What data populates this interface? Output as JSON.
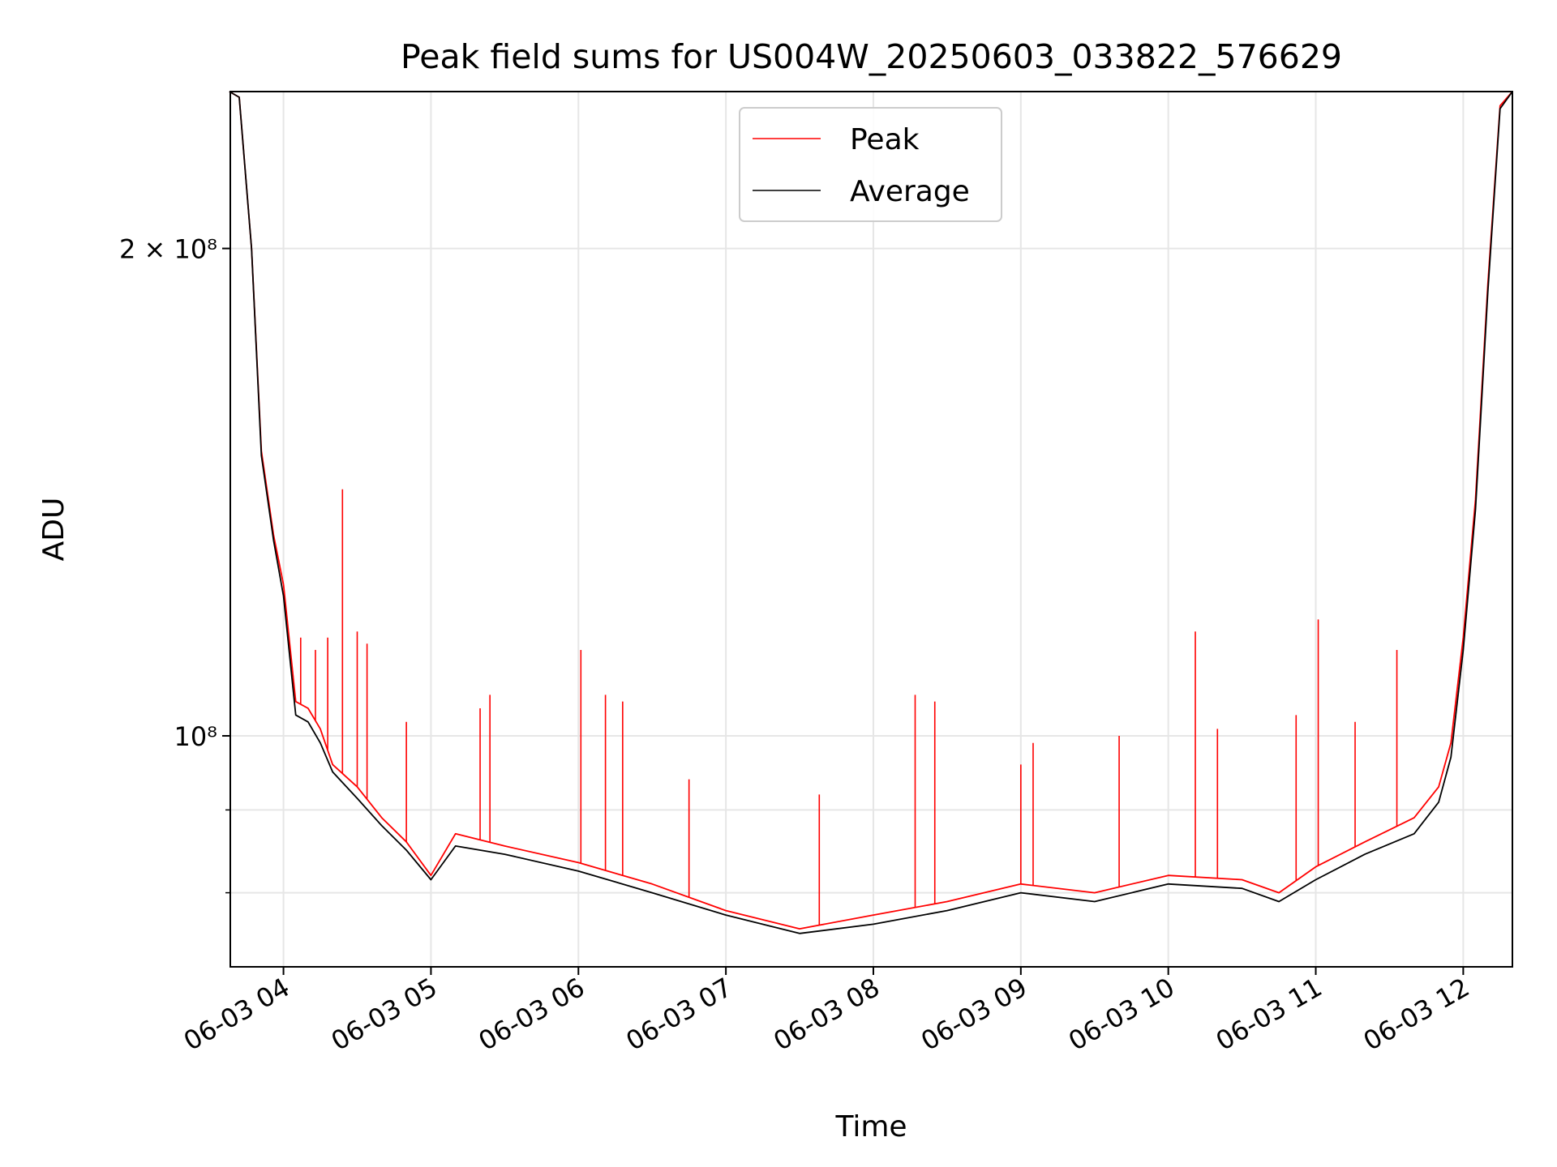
{
  "chart_data": {
    "type": "line",
    "title": "Peak field sums for US004W_20250603_033822_576629",
    "xlabel": "Time",
    "ylabel": "ADU",
    "y_scale": "log",
    "ylim": [
      72000000,
      250000000
    ],
    "xlim": [
      "2025-06-03 03:38:22",
      "2025-06-03 12:20:00"
    ],
    "grid": true,
    "legend_position": "top-center",
    "x_ticks": [
      "2025-06-03 04:00",
      "2025-06-03 05:00",
      "2025-06-03 06:00",
      "2025-06-03 07:00",
      "2025-06-03 08:00",
      "2025-06-03 09:00",
      "2025-06-03 10:00",
      "2025-06-03 11:00",
      "2025-06-03 12:00"
    ],
    "x_tick_labels": [
      "06-03 04",
      "06-03 05",
      "06-03 06",
      "06-03 07",
      "06-03 08",
      "06-03 09",
      "06-03 10",
      "06-03 11",
      "06-03 12"
    ],
    "y_tick_labels": [
      {
        "value": 200000000,
        "label": "2 × 10⁸"
      },
      {
        "value": 100000000,
        "label": "10⁸"
      }
    ],
    "y_minor_ticks": [
      80000000,
      90000000
    ],
    "series": [
      {
        "name": "Peak",
        "color": "#ff0000",
        "x": [
          "2025-06-03 03:38",
          "2025-06-03 03:42",
          "2025-06-03 03:47",
          "2025-06-03 03:51",
          "2025-06-03 03:56",
          "2025-06-03 04:00",
          "2025-06-03 04:05",
          "2025-06-03 04:10",
          "2025-06-03 04:15",
          "2025-06-03 04:20",
          "2025-06-03 04:30",
          "2025-06-03 04:40",
          "2025-06-03 04:50",
          "2025-06-03 05:00",
          "2025-06-03 05:10",
          "2025-06-03 05:30",
          "2025-06-03 06:00",
          "2025-06-03 06:30",
          "2025-06-03 07:00",
          "2025-06-03 07:30",
          "2025-06-03 08:00",
          "2025-06-03 08:30",
          "2025-06-03 09:00",
          "2025-06-03 09:30",
          "2025-06-03 10:00",
          "2025-06-03 10:30",
          "2025-06-03 10:45",
          "2025-06-03 11:00",
          "2025-06-03 11:20",
          "2025-06-03 11:40",
          "2025-06-03 11:50",
          "2025-06-03 11:55",
          "2025-06-03 12:00",
          "2025-06-03 12:05",
          "2025-06-03 12:10",
          "2025-06-03 12:15",
          "2025-06-03 12:20"
        ],
        "y": [
          250000000,
          248000000,
          200000000,
          150000000,
          133000000,
          124000000,
          105000000,
          104000000,
          101000000,
          96000000,
          93000000,
          89000000,
          86000000,
          82000000,
          87000000,
          85500000,
          83500000,
          81000000,
          78000000,
          76000000,
          77500000,
          79000000,
          81000000,
          80000000,
          82000000,
          81500000,
          80000000,
          83000000,
          86000000,
          89000000,
          93000000,
          99000000,
          115000000,
          140000000,
          190000000,
          245000000,
          250000000
        ]
      },
      {
        "name": "Average",
        "color": "#000000",
        "x": [
          "2025-06-03 03:38",
          "2025-06-03 03:42",
          "2025-06-03 03:47",
          "2025-06-03 03:51",
          "2025-06-03 03:56",
          "2025-06-03 04:00",
          "2025-06-03 04:05",
          "2025-06-03 04:10",
          "2025-06-03 04:15",
          "2025-06-03 04:20",
          "2025-06-03 04:30",
          "2025-06-03 04:40",
          "2025-06-03 04:50",
          "2025-06-03 05:00",
          "2025-06-03 05:10",
          "2025-06-03 05:30",
          "2025-06-03 06:00",
          "2025-06-03 06:30",
          "2025-06-03 07:00",
          "2025-06-03 07:30",
          "2025-06-03 08:00",
          "2025-06-03 08:30",
          "2025-06-03 09:00",
          "2025-06-03 09:30",
          "2025-06-03 10:00",
          "2025-06-03 10:30",
          "2025-06-03 10:45",
          "2025-06-03 11:00",
          "2025-06-03 11:20",
          "2025-06-03 11:40",
          "2025-06-03 11:50",
          "2025-06-03 11:55",
          "2025-06-03 12:00",
          "2025-06-03 12:05",
          "2025-06-03 12:10",
          "2025-06-03 12:15",
          "2025-06-03 12:20"
        ],
        "y": [
          250000000,
          248000000,
          200000000,
          149000000,
          132000000,
          122000000,
          103000000,
          102000000,
          99000000,
          95000000,
          91500000,
          88000000,
          85000000,
          81500000,
          85500000,
          84500000,
          82500000,
          80000000,
          77500000,
          75500000,
          76500000,
          78000000,
          80000000,
          79000000,
          81000000,
          80500000,
          79000000,
          81500000,
          84500000,
          87000000,
          91000000,
          97000000,
          113000000,
          138000000,
          188000000,
          244000000,
          250000000
        ]
      }
    ],
    "peak_spikes": [
      {
        "x": "2025-06-03 04:07",
        "y": 115000000
      },
      {
        "x": "2025-06-03 04:13",
        "y": 113000000
      },
      {
        "x": "2025-06-03 04:18",
        "y": 115000000
      },
      {
        "x": "2025-06-03 04:24",
        "y": 142000000
      },
      {
        "x": "2025-06-03 04:30",
        "y": 116000000
      },
      {
        "x": "2025-06-03 04:34",
        "y": 114000000
      },
      {
        "x": "2025-06-03 04:50",
        "y": 102000000
      },
      {
        "x": "2025-06-03 05:20",
        "y": 104000000
      },
      {
        "x": "2025-06-03 05:24",
        "y": 106000000
      },
      {
        "x": "2025-06-03 06:01",
        "y": 113000000
      },
      {
        "x": "2025-06-03 06:11",
        "y": 106000000
      },
      {
        "x": "2025-06-03 06:18",
        "y": 105000000
      },
      {
        "x": "2025-06-03 06:45",
        "y": 94000000
      },
      {
        "x": "2025-06-03 07:38",
        "y": 92000000
      },
      {
        "x": "2025-06-03 08:17",
        "y": 106000000
      },
      {
        "x": "2025-06-03 08:25",
        "y": 105000000
      },
      {
        "x": "2025-06-03 09:00",
        "y": 96000000
      },
      {
        "x": "2025-06-03 09:05",
        "y": 99000000
      },
      {
        "x": "2025-06-03 09:40",
        "y": 100000000
      },
      {
        "x": "2025-06-03 10:11",
        "y": 116000000
      },
      {
        "x": "2025-06-03 10:20",
        "y": 101000000
      },
      {
        "x": "2025-06-03 10:52",
        "y": 103000000
      },
      {
        "x": "2025-06-03 11:01",
        "y": 118000000
      },
      {
        "x": "2025-06-03 11:16",
        "y": 102000000
      },
      {
        "x": "2025-06-03 11:33",
        "y": 113000000
      }
    ]
  }
}
